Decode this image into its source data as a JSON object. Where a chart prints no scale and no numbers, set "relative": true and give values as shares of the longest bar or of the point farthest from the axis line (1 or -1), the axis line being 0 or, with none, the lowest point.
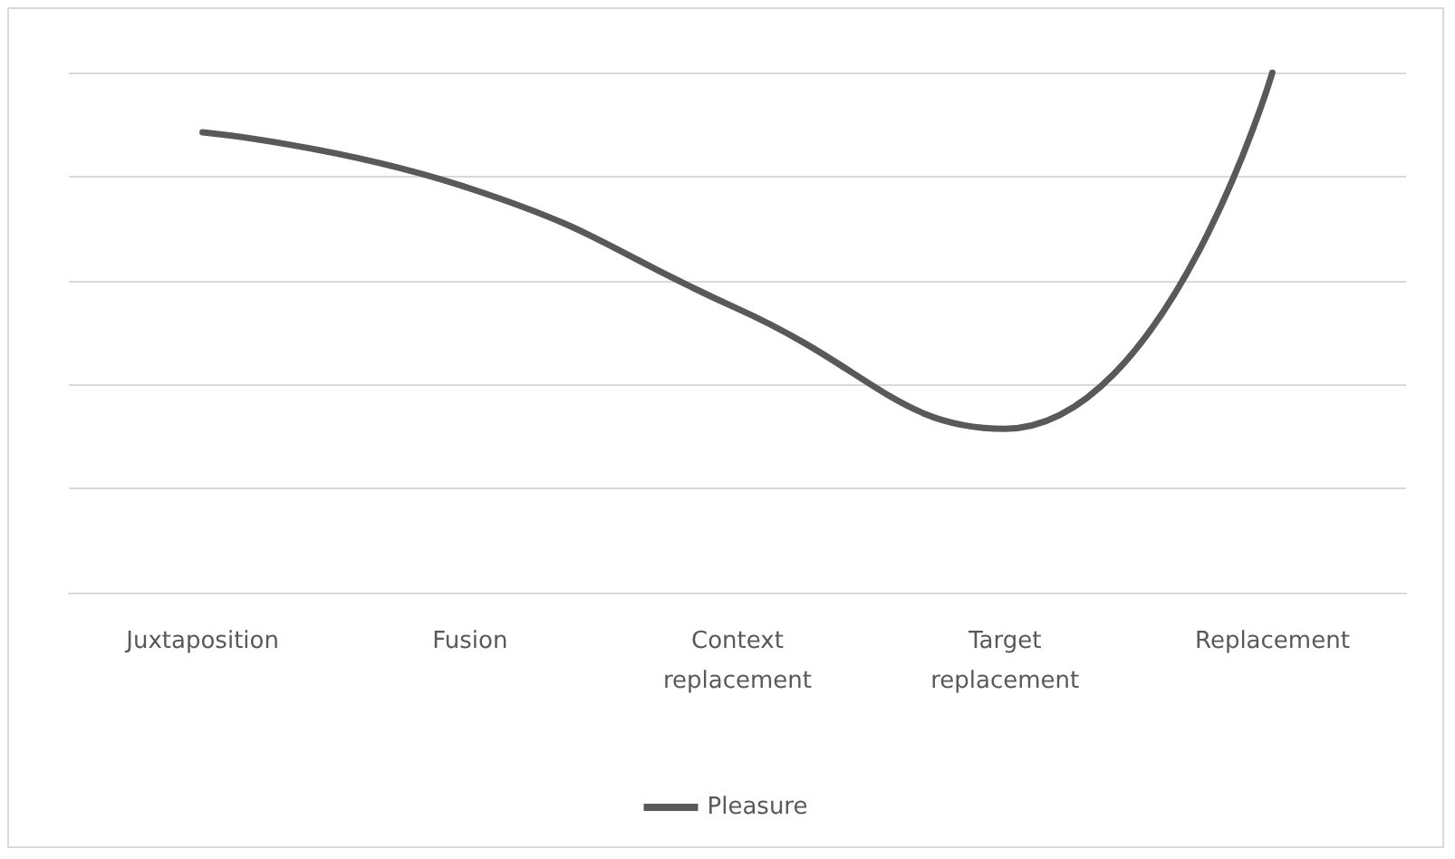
{
  "chart_data": {
    "type": "line",
    "relative": true,
    "categories": [
      "Juxtaposition",
      "Fusion",
      "Context\nreplacement",
      "Target\nreplacement",
      "Replacement"
    ],
    "series": [
      {
        "name": "Pleasure",
        "color": "#595959",
        "values": [
          0.885,
          0.777,
          0.546,
          0.315,
          1
        ]
      }
    ],
    "grid": "y",
    "legend": "bottom",
    "marker": "none",
    "line_style": "solid"
  }
}
